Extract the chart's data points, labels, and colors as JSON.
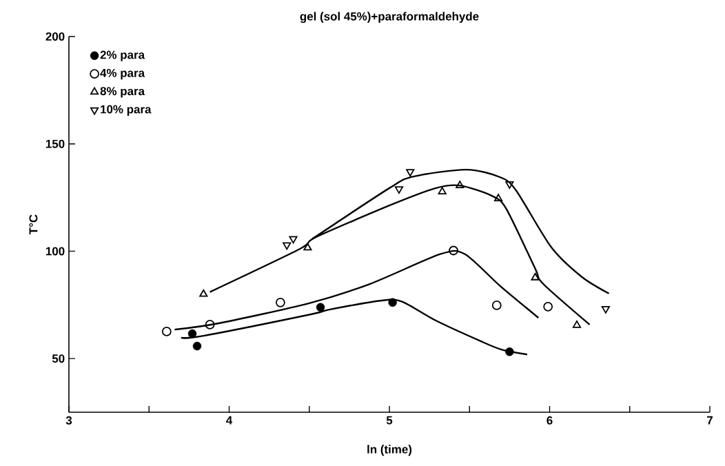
{
  "chart_data": {
    "type": "scatter",
    "title": "gel (sol 45%)+paraformaldehyde",
    "xlabel": "ln (time)",
    "ylabel": "T°C",
    "xlim": [
      3,
      7
    ],
    "ylim": [
      25,
      200
    ],
    "xticks": [
      3,
      {
        "value": 3.5,
        "label": null
      },
      4,
      {
        "value": 4.5,
        "label": null
      },
      5,
      {
        "value": 5.5,
        "label": null
      },
      6,
      {
        "value": 6.5,
        "label": null
      },
      7
    ],
    "yticks": [
      50,
      100,
      150,
      200
    ],
    "grid": false,
    "legend": "top left",
    "series": [
      {
        "name": "2% para",
        "color": "#000000",
        "marker": "circle",
        "x": [
          3.77,
          3.8,
          4.57,
          5.02,
          5.75
        ],
        "values": [
          61.6,
          55.8,
          73.9,
          76.1,
          53.2
        ]
      },
      {
        "name": "4% para",
        "color": "#000000",
        "marker": "circle-open",
        "x": [
          3.61,
          3.88,
          4.32,
          5.4,
          5.67,
          5.99
        ],
        "values": [
          62.6,
          65.8,
          76.1,
          100.3,
          74.8,
          74.2
        ]
      },
      {
        "name": "8% para",
        "color": "#000000",
        "marker": "triangle",
        "x": [
          3.84,
          4.49,
          5.33,
          5.44,
          5.68,
          5.91,
          6.17
        ],
        "values": [
          80.0,
          101.6,
          127.7,
          130.6,
          124.5,
          87.7,
          65.5
        ]
      },
      {
        "name": "10% para",
        "color": "#000000",
        "marker": "triangle-down",
        "x": [
          4.36,
          4.4,
          5.06,
          5.13,
          5.75,
          6.35
        ],
        "values": [
          102.9,
          105.8,
          129.0,
          137.0,
          131.3,
          73.2
        ]
      },
      {
        "type": "line",
        "color": "#000000",
        "line_style": "solid",
        "x": [
          3.7,
          3.84,
          4.51,
          4.63,
          4.96,
          5.08,
          5.29,
          5.57,
          5.7,
          5.86
        ],
        "values": [
          59.7,
          60.6,
          70.6,
          72.9,
          77.1,
          76.5,
          67.7,
          58.1,
          54.2,
          51.9
        ]
      },
      {
        "type": "line",
        "color": "#000000",
        "line_style": "solid",
        "x": [
          3.66,
          3.94,
          4.5,
          4.88,
          5.32,
          5.47,
          5.69,
          5.93
        ],
        "values": [
          63.5,
          66.5,
          75.8,
          84.8,
          98.7,
          98.7,
          83.9,
          69.0
        ]
      },
      {
        "type": "line",
        "color": "#000000",
        "line_style": "solid",
        "x": [
          3.88,
          4.44,
          4.54,
          5.02,
          5.29,
          5.44,
          5.64,
          5.73,
          5.91,
          5.96,
          6.25
        ],
        "values": [
          81.0,
          101.0,
          106.5,
          121.9,
          129.4,
          130.6,
          125.8,
          119.7,
          91.9,
          84.8,
          65.8
        ]
      },
      {
        "type": "line",
        "color": "#000000",
        "line_style": "solid",
        "x": [
          4.52,
          5.0,
          5.15,
          5.48,
          5.69,
          5.79,
          6.01,
          6.2,
          6.37
        ],
        "values": [
          105.8,
          129.4,
          134.8,
          138.0,
          134.5,
          128.4,
          101.9,
          88.1,
          80.3
        ]
      }
    ]
  }
}
